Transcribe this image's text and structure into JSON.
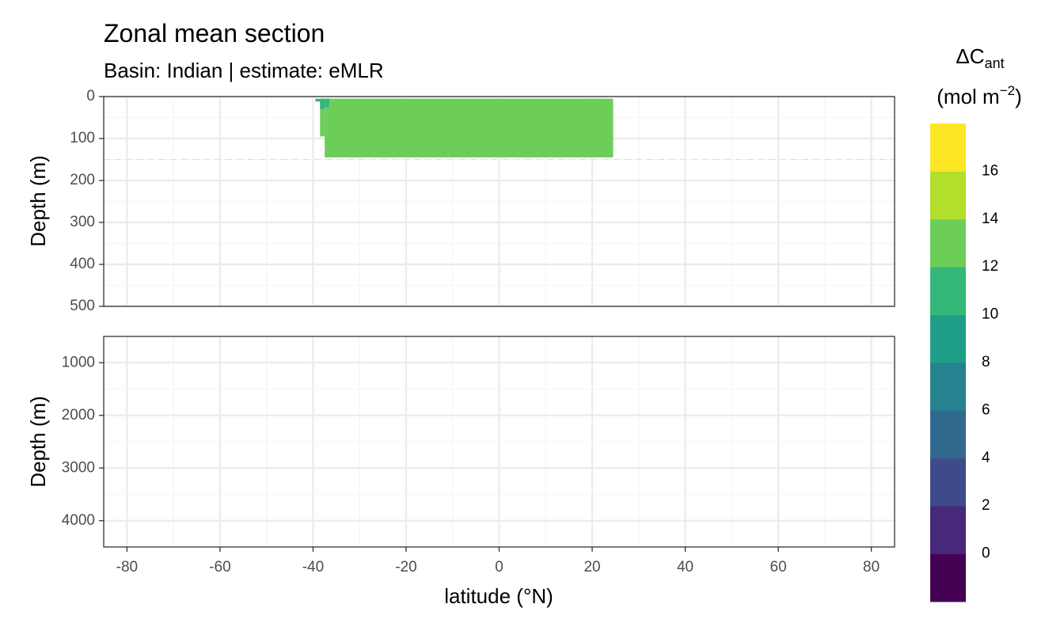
{
  "chart_data": {
    "type": "heatmap",
    "title": "Zonal mean section",
    "subtitle": "Basin: Indian | estimate: eMLR",
    "xlabel": "latitude (°N)",
    "x_ticks": [
      "-80",
      "-60",
      "-40",
      "-20",
      "0",
      "20",
      "40",
      "60",
      "80"
    ],
    "xlim": [
      -85,
      85
    ],
    "panels": [
      {
        "name": "upper",
        "ylabel": "Depth (m)",
        "ylim": [
          0,
          500
        ],
        "y_ticks": [
          "0",
          "100",
          "200",
          "300",
          "400",
          "500"
        ],
        "reference_depth_line": 150,
        "cells": [
          {
            "lat": [
              -39.5,
              -38.5
            ],
            "depth": [
              5,
              12
            ],
            "value": 11
          },
          {
            "lat": [
              -38.5,
              -37.5
            ],
            "depth": [
              5,
              95
            ],
            "value": 12.5
          },
          {
            "lat": [
              -38.5,
              -37.5
            ],
            "depth": [
              5,
              30
            ],
            "value": 11
          },
          {
            "lat": [
              -37.5,
              -36.5
            ],
            "depth": [
              5,
              145
            ],
            "value": 12.5
          },
          {
            "lat": [
              -37.5,
              -36.5
            ],
            "depth": [
              5,
              25
            ],
            "value": 11
          },
          {
            "lat": [
              -36.5,
              24.5
            ],
            "depth": [
              5,
              145
            ],
            "value": 12.5
          }
        ]
      },
      {
        "name": "lower",
        "ylabel": "Depth (m)",
        "ylim": [
          500,
          4500
        ],
        "y_ticks": [
          "1000",
          "2000",
          "3000",
          "4000"
        ],
        "cells": []
      }
    ],
    "legend": {
      "title_main": "ΔC",
      "title_sub": "ant",
      "title_unit_prefix": "(mol m",
      "title_unit_exp": "−2",
      "title_unit_suffix": ")",
      "placement": "right",
      "tick_labels": [
        "16",
        "14",
        "12",
        "10",
        "8",
        "6",
        "4",
        "2",
        "0"
      ],
      "breaks": [
        -2,
        0,
        2,
        4,
        6,
        8,
        10,
        12,
        14,
        16,
        18
      ],
      "colors": [
        "#440154",
        "#482878",
        "#3E4A89",
        "#31688E",
        "#26828E",
        "#1F9E89",
        "#35B779",
        "#6DCD59",
        "#B4DE2C",
        "#FDE725"
      ]
    }
  }
}
